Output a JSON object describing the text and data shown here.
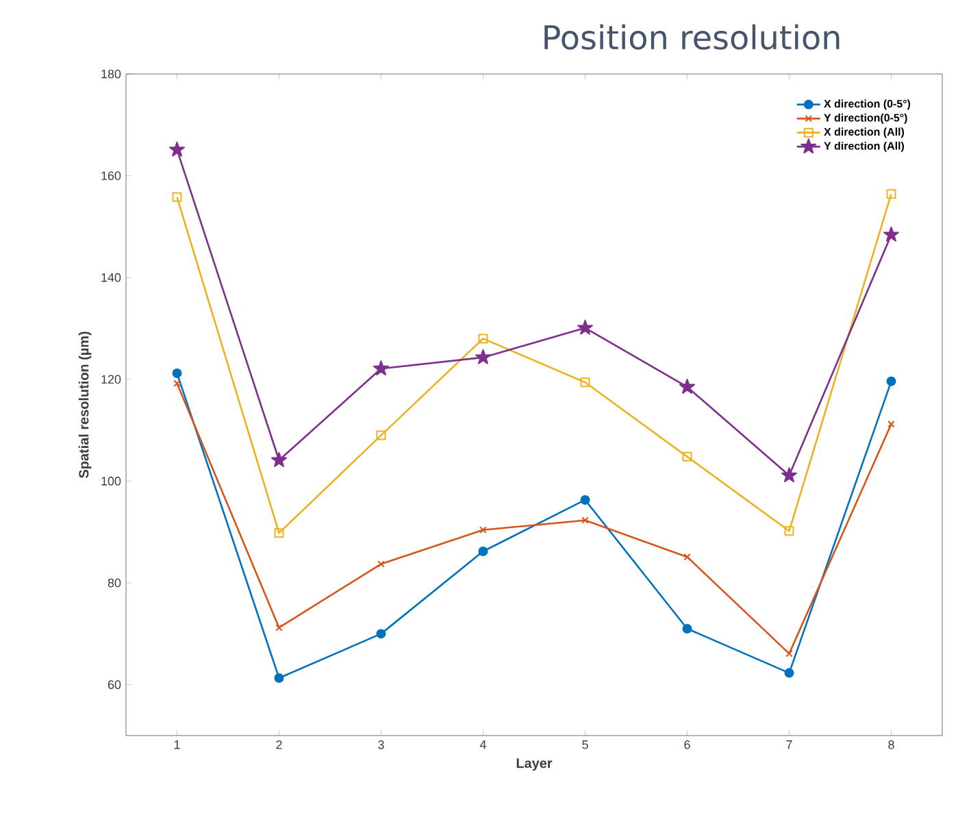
{
  "chart_data": {
    "type": "line",
    "title": "Position resolution",
    "xlabel": "Layer",
    "ylabel": "Spatial resolution (µm)",
    "x": [
      1,
      2,
      3,
      4,
      5,
      6,
      7,
      8
    ],
    "xlim": [
      0.5,
      8.5
    ],
    "xticks": [
      1,
      2,
      3,
      4,
      5,
      6,
      7,
      8
    ],
    "ylim": [
      50,
      180
    ],
    "yticks": [
      60,
      80,
      100,
      120,
      140,
      160,
      180
    ],
    "legend": "top right",
    "grid": false,
    "series": [
      {
        "name": "X direction (0-5°)",
        "color": "#0072bd",
        "marker": "circle",
        "values": [
          121.2,
          61.3,
          70.0,
          86.2,
          96.3,
          71.0,
          62.3,
          119.6
        ]
      },
      {
        "name": "Y direction(0-5°)",
        "color": "#d95319",
        "marker": "cross",
        "values": [
          119.2,
          71.2,
          83.7,
          90.4,
          92.3,
          85.1,
          66.1,
          111.2
        ]
      },
      {
        "name": "X direction (All)",
        "color": "#edb120",
        "marker": "square",
        "values": [
          155.8,
          89.8,
          109.0,
          128.0,
          119.4,
          104.8,
          90.2,
          156.4
        ]
      },
      {
        "name": "Y direction (All)",
        "color": "#7e2f8e",
        "marker": "star",
        "values": [
          165.1,
          104.1,
          122.1,
          124.3,
          130.1,
          118.5,
          101.1,
          148.4
        ]
      }
    ]
  }
}
